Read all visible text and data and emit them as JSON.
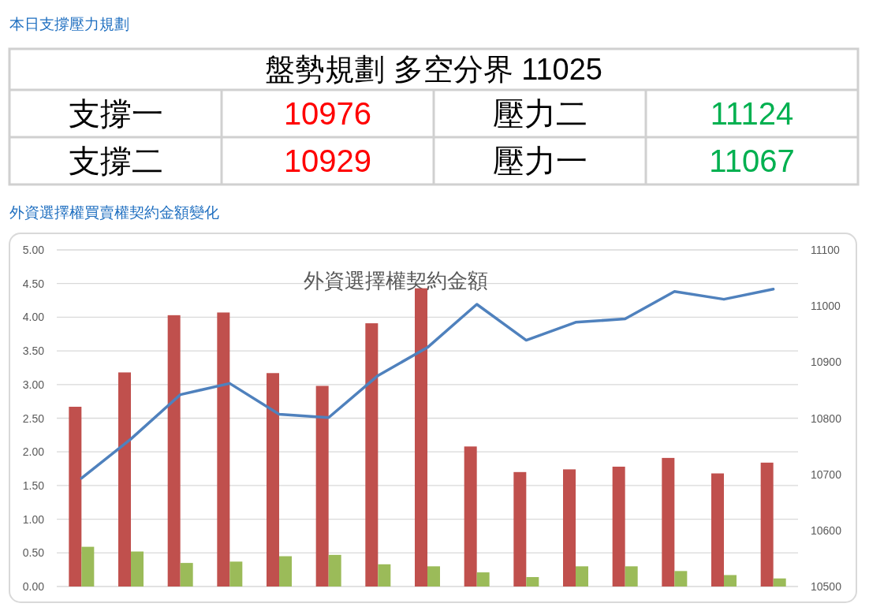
{
  "chart_data": [
    {
      "type": "other",
      "title": "本日支撐壓力規劃",
      "annotations": [
        "盤勢規劃 多空分界 11025",
        "支撐一",
        "10976",
        "壓力二",
        "11124",
        "支撐二",
        "10929",
        "壓力一",
        "11067"
      ],
      "colors": [
        "#000000",
        "#000000",
        "#ff0000",
        "#000000",
        "#00b050",
        "#000000",
        "#ff0000",
        "#000000",
        "#00b050"
      ]
    },
    {
      "type": "bar",
      "title": "外資選擇權買賣權契約金額變化",
      "subtitle": "外資選擇權契約金額",
      "categories": [
        null,
        null,
        null,
        null,
        null,
        null,
        null,
        null,
        null,
        null,
        null,
        null,
        null,
        null,
        null
      ],
      "series": [
        {
          "color": "#c0504d",
          "values": [
            2.67,
            3.18,
            4.03,
            4.07,
            3.17,
            2.98,
            3.91,
            4.43,
            2.08,
            1.7,
            1.74,
            1.78,
            1.91,
            1.68,
            1.84
          ]
        },
        {
          "color": "#9bbb59",
          "values": [
            0.59,
            0.52,
            0.35,
            0.37,
            0.45,
            0.47,
            0.33,
            0.3,
            0.21,
            0.14,
            0.3,
            0.3,
            0.23,
            0.17,
            0.12
          ]
        },
        {
          "type": "line",
          "axis": "y2",
          "color": "#4f81bd",
          "values": [
            10693,
            10763,
            10842,
            10862,
            10807,
            10801,
            10876,
            10926,
            11003,
            10939,
            10971,
            10977,
            11026,
            11012,
            11030
          ]
        }
      ],
      "ylim": [
        0,
        5
      ],
      "yticks": [
        {
          "value": 0,
          "label": "0.00"
        },
        {
          "value": 0.5,
          "label": "0.50"
        },
        {
          "value": 1,
          "label": "1.00"
        },
        {
          "value": 1.5,
          "label": "1.50"
        },
        {
          "value": 2,
          "label": "2.00"
        },
        {
          "value": 2.5,
          "label": "2.50"
        },
        {
          "value": 3,
          "label": "3.00"
        },
        {
          "value": 3.5,
          "label": "3.50"
        },
        {
          "value": 4,
          "label": "4.00"
        },
        {
          "value": 4.5,
          "label": "4.50"
        },
        {
          "value": 5,
          "label": "5.00"
        }
      ],
      "y2lim": [
        10500,
        11100
      ],
      "y2ticks": [
        10500,
        10600,
        10700,
        10800,
        10900,
        11000,
        11100
      ],
      "grid": "y",
      "tick_labels": "y"
    }
  ]
}
